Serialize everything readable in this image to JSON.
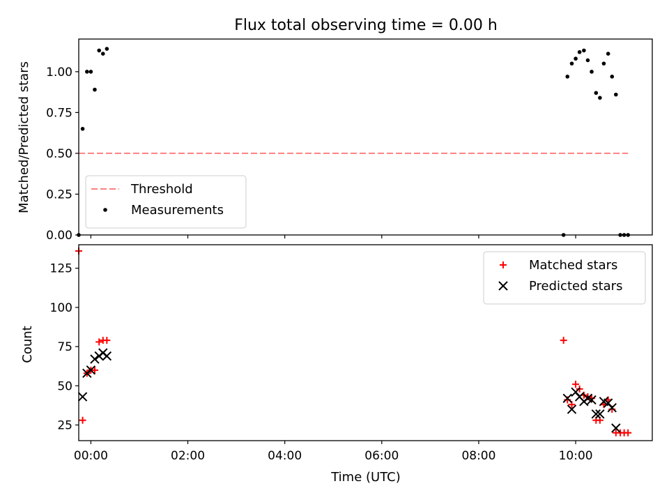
{
  "title": "Flux total observing time = 0.00 h",
  "colors": {
    "threshold": "#ff8080",
    "measurement": "#000000",
    "matched": "#ff0000",
    "predicted": "#000000",
    "axes": "#000000",
    "background": "#ffffff"
  },
  "chart_data": [
    {
      "type": "scatter",
      "ylabel": "Matched/Predicted stars",
      "xlabel": "",
      "ylim": [
        0,
        1.2
      ],
      "xlim": [
        -0.25,
        11.58
      ],
      "yticks": [
        0.0,
        0.25,
        0.5,
        0.75,
        1.0
      ],
      "ytick_labels": [
        "0.00",
        "0.25",
        "0.50",
        "0.75",
        "1.00"
      ],
      "legend_position": "lower-left",
      "legend": [
        {
          "label": "Threshold",
          "marker": "dash-line",
          "color": "#ff8080"
        },
        {
          "label": "Measurements",
          "marker": "dot",
          "color": "#000000"
        }
      ],
      "threshold": {
        "name": "Threshold",
        "y": 0.5,
        "x_range": [
          -0.25,
          11.08
        ]
      },
      "series": [
        {
          "name": "Measurements",
          "marker": "dot",
          "x": [
            -0.25,
            -0.17,
            -0.08,
            0.0,
            0.08,
            0.17,
            0.25,
            0.33,
            9.75,
            9.83,
            9.92,
            10.0,
            10.08,
            10.17,
            10.25,
            10.33,
            10.42,
            10.5,
            10.58,
            10.67,
            10.75,
            10.83,
            10.92,
            11.0,
            11.08
          ],
          "y": [
            0.0,
            0.65,
            1.0,
            1.0,
            0.89,
            1.13,
            1.11,
            1.14,
            0.0,
            0.97,
            1.05,
            1.08,
            1.12,
            1.13,
            1.07,
            1.0,
            0.87,
            0.84,
            1.05,
            1.11,
            0.97,
            0.86,
            0.0,
            0.0,
            0.0
          ]
        }
      ]
    },
    {
      "type": "scatter",
      "ylabel": "Count",
      "xlabel": "Time (UTC)",
      "ylim": [
        15,
        140
      ],
      "xlim": [
        -0.25,
        11.58
      ],
      "yticks": [
        25,
        50,
        75,
        100,
        125
      ],
      "ytick_labels": [
        "25",
        "50",
        "75",
        "100",
        "125"
      ],
      "xticks": [
        0,
        2,
        4,
        6,
        8,
        10
      ],
      "xtick_labels": [
        "00:00",
        "02:00",
        "04:00",
        "06:00",
        "08:00",
        "10:00"
      ],
      "legend_position": "top-right",
      "legend": [
        {
          "label": "Matched stars",
          "marker": "plus",
          "color": "#ff0000"
        },
        {
          "label": "Predicted stars",
          "marker": "x",
          "color": "#000000"
        }
      ],
      "series": [
        {
          "name": "Matched stars",
          "marker": "plus",
          "x": [
            -0.25,
            -0.17,
            -0.08,
            0.0,
            0.08,
            0.17,
            0.25,
            0.33,
            9.75,
            9.83,
            9.92,
            10.0,
            10.08,
            10.17,
            10.25,
            10.33,
            10.42,
            10.5,
            10.58,
            10.67,
            10.75,
            10.83,
            10.92,
            11.0,
            11.08
          ],
          "y": [
            136,
            28,
            58,
            60,
            60,
            78,
            79,
            79,
            79,
            41,
            38,
            51,
            48,
            44,
            43,
            42,
            28,
            28,
            38,
            41,
            35,
            20,
            20,
            20,
            20
          ]
        },
        {
          "name": "Predicted stars",
          "marker": "x",
          "x": [
            -0.17,
            -0.08,
            0.0,
            0.08,
            0.17,
            0.25,
            0.33,
            9.83,
            9.92,
            10.0,
            10.08,
            10.17,
            10.25,
            10.33,
            10.42,
            10.5,
            10.58,
            10.67,
            10.75,
            10.83
          ],
          "y": [
            43,
            58,
            60,
            67,
            69,
            71,
            69,
            42,
            35,
            46,
            43,
            40,
            42,
            41,
            32,
            32,
            40,
            39,
            36,
            23
          ]
        }
      ]
    }
  ]
}
